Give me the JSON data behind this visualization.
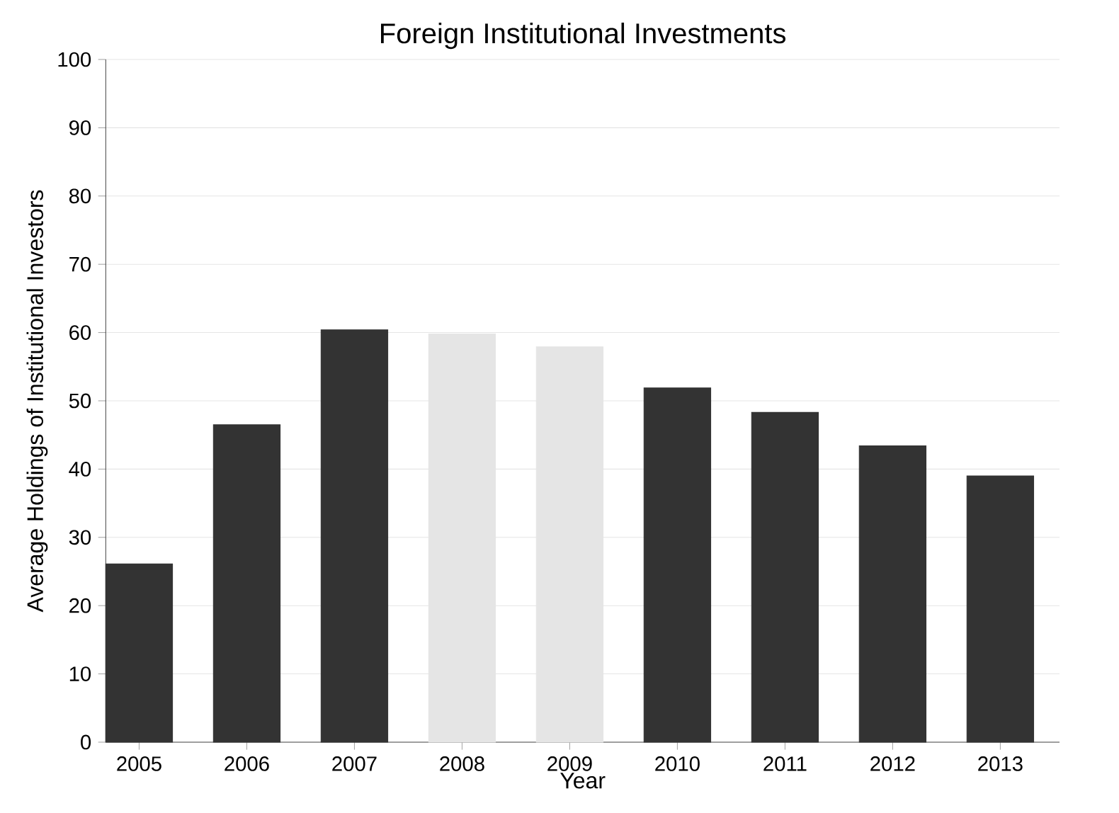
{
  "chart_data": {
    "type": "bar",
    "title": "Foreign Institutional Investments",
    "xlabel": "Year",
    "ylabel": "Average Holdings of Institutional Investors",
    "categories": [
      "2005",
      "2006",
      "2007",
      "2008",
      "2009",
      "2010",
      "2011",
      "2012",
      "2013"
    ],
    "values": [
      26.1,
      46.5,
      60.4,
      59.8,
      57.9,
      51.9,
      48.3,
      43.4,
      39.0
    ],
    "colors": [
      "#333333",
      "#333333",
      "#333333",
      "#e5e5e5",
      "#e5e5e5",
      "#333333",
      "#333333",
      "#333333",
      "#333333"
    ],
    "ylim": [
      0,
      100
    ],
    "yticks": [
      0,
      10,
      20,
      30,
      40,
      50,
      60,
      70,
      80,
      90,
      100
    ],
    "grid": "y"
  }
}
